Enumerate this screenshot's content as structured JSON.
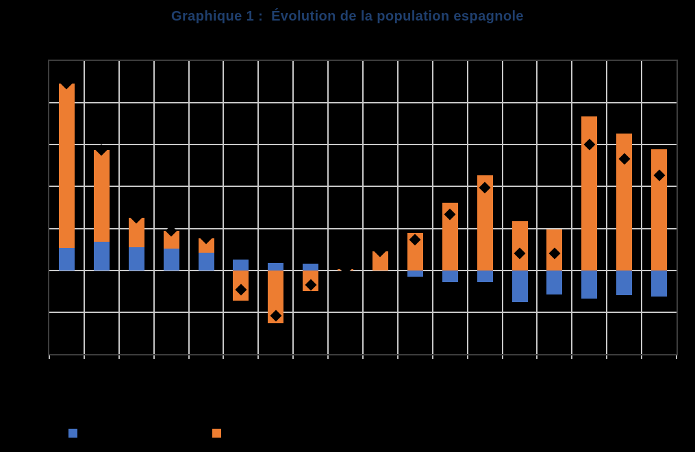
{
  "title": "Graphique 1 :  Évolution de la population espagnole",
  "colors": {
    "background": "#000000",
    "title_text": "#1F3F6E",
    "plot_border": "#3D3D3D",
    "gridline": "#C9C9C9",
    "axis_tick": "#BFBFBF",
    "series_blue": "#4472C4",
    "series_orange": "#ED7D31",
    "marker_black": "#000000"
  },
  "legend": {
    "items": [
      {
        "label": "",
        "swatch_color": "#4472C4"
      },
      {
        "label": "",
        "swatch_color": "#ED7D31"
      }
    ]
  },
  "chart_data": {
    "type": "bar",
    "subtype": "stacked-column-with-diamond-total-markers",
    "title": "Graphique 1 :  Évolution de la population espagnole",
    "x": [
      1,
      2,
      3,
      4,
      5,
      6,
      7,
      8,
      9,
      10,
      11,
      12,
      13,
      14,
      15,
      16,
      17,
      18
    ],
    "x_tick_labels_visible": false,
    "y_tick_labels_visible": false,
    "ylim": [
      -200,
      500
    ],
    "y_grid_step": 100,
    "grid": "both",
    "legend_position": "bottom-left",
    "series": [
      {
        "name": "blue-component",
        "type": "stacked-bar",
        "color": "#4472C4",
        "values": [
          54,
          68,
          55,
          52,
          42,
          26,
          18,
          16,
          0,
          0,
          -16,
          -29,
          -29,
          -76,
          -57,
          -68,
          -60,
          -62
        ]
      },
      {
        "name": "orange-component",
        "type": "stacked-bar",
        "color": "#ED7D31",
        "values": [
          392,
          219,
          70,
          42,
          34,
          -73,
          -127,
          -50,
          3,
          45,
          89,
          162,
          227,
          117,
          97,
          368,
          326,
          289
        ]
      },
      {
        "name": "total",
        "type": "diamond-marker",
        "color": "#000000",
        "values": [
          446,
          287,
          125,
          94,
          76,
          -47,
          -109,
          -34,
          3,
          45,
          73,
          133,
          198,
          41,
          40,
          300,
          266,
          227
        ]
      }
    ]
  }
}
